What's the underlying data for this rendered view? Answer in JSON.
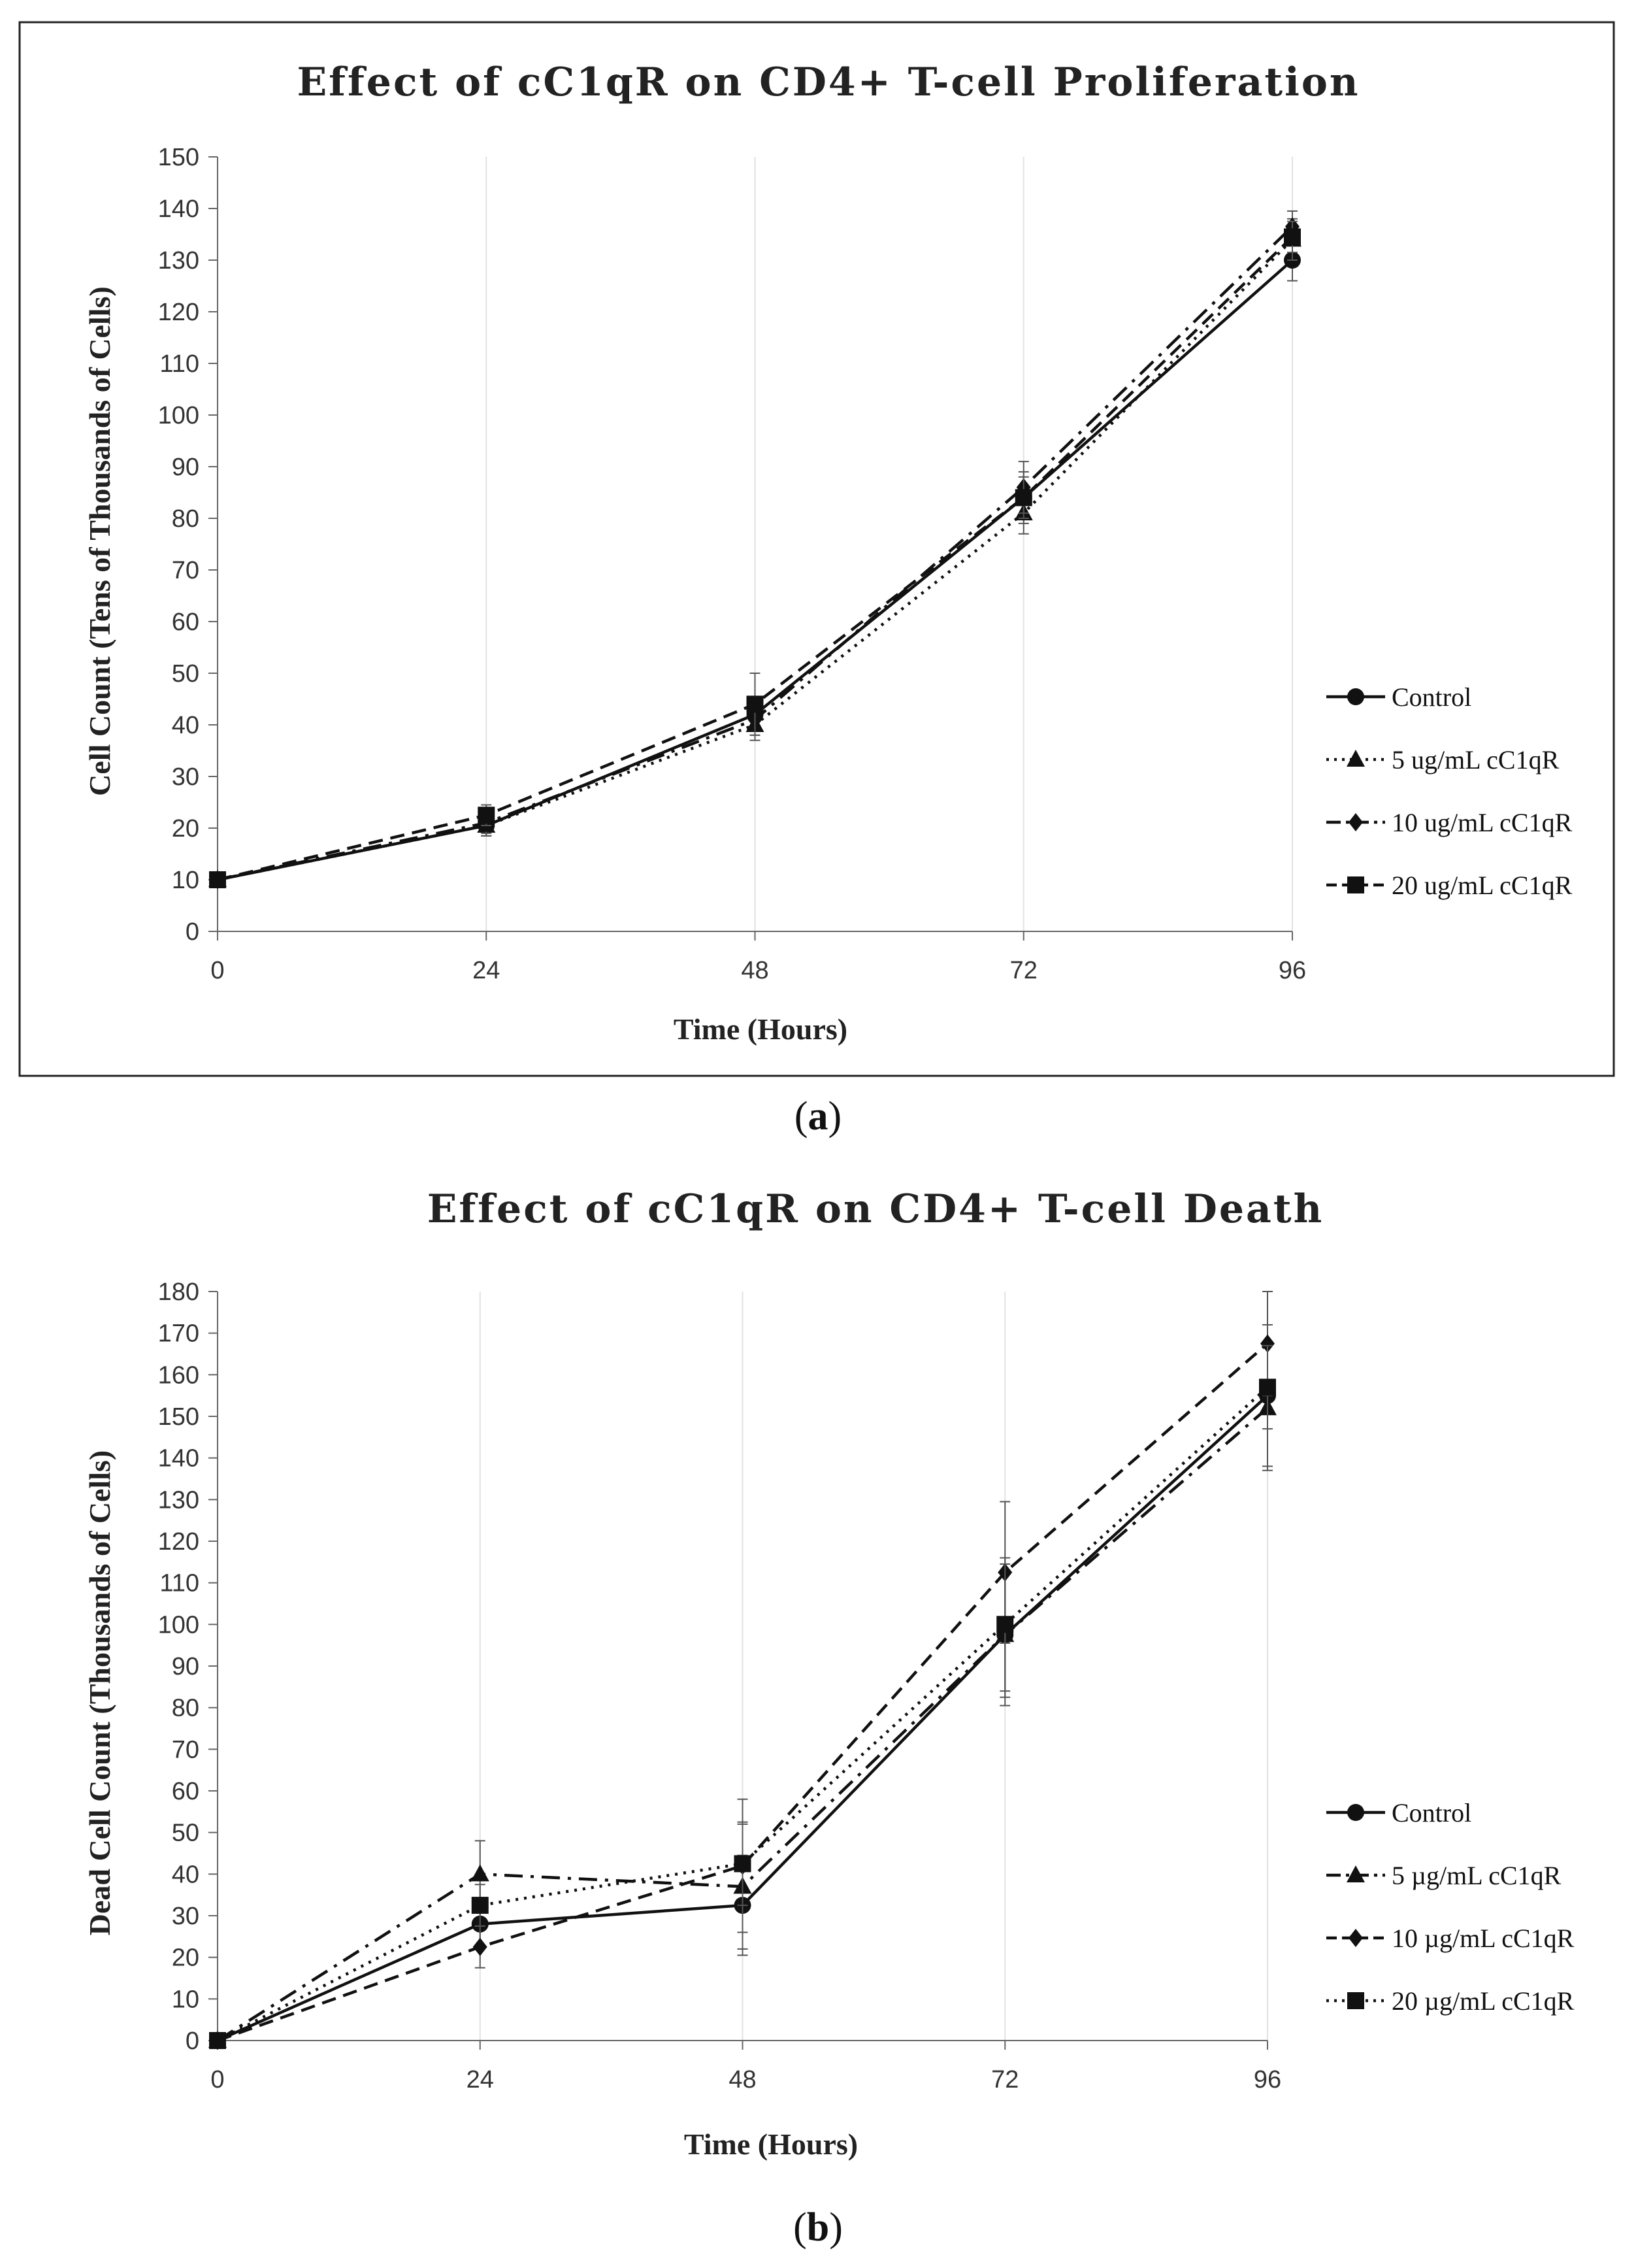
{
  "chart_data": [
    {
      "type": "line",
      "panel": "a",
      "panel_label": "a",
      "boxed": true,
      "title": "Effect of cC1qR on CD4+ T-cell Proliferation",
      "xlabel": "Time (Hours)",
      "ylabel": "Cell Count (Tens of Thousands of Cells)",
      "x": [
        0,
        24,
        48,
        72,
        96
      ],
      "xticks": [
        "0",
        "24",
        "48",
        "72",
        "96"
      ],
      "xlim": [
        0,
        96
      ],
      "ylim": [
        0,
        150
      ],
      "ytick_step": 10,
      "grid": "vertical",
      "legend_position": "right",
      "series": [
        {
          "name": "Control",
          "label": "Control",
          "marker": "circle",
          "dash": "solid",
          "values": [
            10,
            20.5,
            42,
            84,
            130
          ],
          "errors": [
            0,
            2,
            3,
            5,
            4
          ]
        },
        {
          "name": "5 ug/mL cC1qR",
          "label": "5 ug/mL cC1qR",
          "marker": "triangle",
          "dash": "dotted",
          "values": [
            10,
            20.5,
            40,
            81,
            134
          ],
          "errors": [
            0,
            2,
            3,
            4,
            4
          ]
        },
        {
          "name": "10 ug/mL cC1qR",
          "label": "10 ug/mL cC1qR",
          "marker": "diamond",
          "dash": "dashdot",
          "values": [
            10,
            21,
            41,
            86,
            136.5
          ],
          "errors": [
            0,
            2,
            3,
            5,
            3
          ]
        },
        {
          "name": "20 ug/mL cC1qR",
          "label": "20 ug/mL cC1qR",
          "marker": "square",
          "dash": "dashed",
          "values": [
            10,
            22.5,
            44,
            84,
            134.5
          ],
          "errors": [
            0,
            2,
            6,
            4,
            3
          ]
        }
      ]
    },
    {
      "type": "line",
      "panel": "b",
      "panel_label": "b",
      "boxed": false,
      "title": "Effect of cC1qR on CD4+ T-cell Death",
      "xlabel": "Time (Hours)",
      "ylabel": "Dead Cell Count (Thousands of Cells)",
      "x": [
        0,
        24,
        48,
        72,
        96
      ],
      "xticks": [
        "0",
        "24",
        "48",
        "72",
        "96"
      ],
      "xlim": [
        0,
        96
      ],
      "ylim": [
        0,
        180
      ],
      "ytick_step": 10,
      "grid": "vertical",
      "legend_position": "right",
      "series": [
        {
          "name": "Control",
          "label": "Control",
          "marker": "circle",
          "dash": "solid",
          "values": [
            0,
            28,
            32.5,
            97.5,
            155
          ],
          "errors": [
            0,
            5,
            12,
            17,
            17
          ]
        },
        {
          "name": "5 µg/mL cC1qR",
          "label": "5 µg/mL cC1qR",
          "marker": "triangle",
          "dash": "dashdot",
          "values": [
            0,
            40,
            37,
            97.5,
            152
          ],
          "errors": [
            0,
            8,
            15,
            15,
            15
          ]
        },
        {
          "name": "10 µg/mL cC1qR",
          "label": "10 µg/mL cC1qR",
          "marker": "diamond",
          "dash": "dashed",
          "values": [
            0,
            22.5,
            42,
            112.5,
            167.5
          ],
          "errors": [
            0,
            5,
            16,
            17,
            12.5
          ]
        },
        {
          "name": "20 µg/mL cC1qR",
          "label": "20 µg/mL cC1qR",
          "marker": "square",
          "dash": "dotted",
          "values": [
            0,
            32.5,
            42.5,
            100,
            157
          ],
          "errors": [
            0,
            5,
            10,
            16,
            10
          ]
        }
      ]
    }
  ]
}
